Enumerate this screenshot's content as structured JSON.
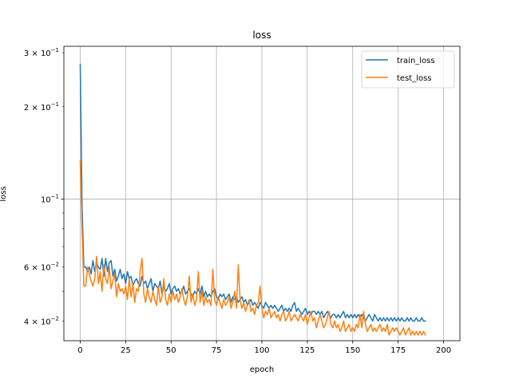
{
  "chart_data": {
    "type": "line",
    "title": "loss",
    "xlabel": "epoch",
    "ylabel": "loss",
    "yscale": "log",
    "xlim": [
      -9,
      209
    ],
    "ylim": [
      0.0345,
      0.315
    ],
    "grid": true,
    "legend_position": "top-right",
    "x_ticks": [
      0,
      25,
      50,
      75,
      100,
      125,
      150,
      175,
      200
    ],
    "x_tick_labels": [
      "0",
      "25",
      "50",
      "75",
      "100",
      "125",
      "150",
      "175",
      "200"
    ],
    "y_major_ticks": [
      {
        "value": 0.1,
        "base": "10",
        "exp": "−1",
        "mantissa": ""
      }
    ],
    "y_minor_labeled": [
      {
        "value": 0.04,
        "mantissa": "4",
        "base": "10",
        "exp": "−2"
      },
      {
        "value": 0.06,
        "mantissa": "6",
        "base": "10",
        "exp": "−2"
      },
      {
        "value": 0.2,
        "mantissa": "2",
        "base": "10",
        "exp": "−1"
      },
      {
        "value": 0.3,
        "mantissa": "3",
        "base": "10",
        "exp": "−1"
      }
    ],
    "y_minor_unlabeled": [
      0.05,
      0.07,
      0.08,
      0.09
    ],
    "times_symbol": "×",
    "series": [
      {
        "name": "train_loss",
        "color": "#1f77b4",
        "x_start": 0,
        "values": [
          0.275,
          0.095,
          0.06,
          0.06,
          0.058,
          0.06,
          0.057,
          0.063,
          0.058,
          0.062,
          0.06,
          0.059,
          0.064,
          0.056,
          0.064,
          0.058,
          0.062,
          0.063,
          0.056,
          0.059,
          0.054,
          0.056,
          0.059,
          0.055,
          0.057,
          0.053,
          0.058,
          0.055,
          0.056,
          0.052,
          0.054,
          0.055,
          0.053,
          0.052,
          0.056,
          0.053,
          0.054,
          0.051,
          0.053,
          0.055,
          0.05,
          0.053,
          0.052,
          0.051,
          0.054,
          0.049,
          0.052,
          0.05,
          0.051,
          0.053,
          0.049,
          0.051,
          0.052,
          0.05,
          0.051,
          0.049,
          0.05,
          0.052,
          0.049,
          0.05,
          0.051,
          0.049,
          0.048,
          0.05,
          0.049,
          0.051,
          0.049,
          0.052,
          0.048,
          0.05,
          0.048,
          0.049,
          0.048,
          0.05,
          0.051,
          0.048,
          0.047,
          0.049,
          0.048,
          0.049,
          0.047,
          0.048,
          0.049,
          0.046,
          0.048,
          0.047,
          0.048,
          0.046,
          0.047,
          0.048,
          0.046,
          0.047,
          0.045,
          0.046,
          0.047,
          0.045,
          0.046,
          0.045,
          0.044,
          0.046,
          0.045,
          0.044,
          0.046,
          0.045,
          0.044,
          0.045,
          0.044,
          0.045,
          0.044,
          0.043,
          0.044,
          0.045,
          0.043,
          0.044,
          0.043,
          0.044,
          0.043,
          0.045,
          0.046,
          0.043,
          0.044,
          0.043,
          0.042,
          0.043,
          0.044,
          0.042,
          0.043,
          0.042,
          0.043,
          0.043,
          0.042,
          0.043,
          0.042,
          0.043,
          0.041,
          0.042,
          0.043,
          0.042,
          0.041,
          0.042,
          0.042,
          0.041,
          0.042,
          0.041,
          0.042,
          0.043,
          0.041,
          0.042,
          0.041,
          0.042,
          0.041,
          0.042,
          0.041,
          0.042,
          0.041,
          0.042,
          0.041,
          0.04,
          0.041,
          0.042,
          0.041,
          0.04,
          0.042,
          0.041,
          0.04,
          0.041,
          0.04,
          0.041,
          0.04,
          0.041,
          0.04,
          0.041,
          0.04,
          0.041,
          0.04,
          0.041,
          0.04,
          0.041,
          0.04,
          0.04,
          0.041,
          0.04,
          0.041,
          0.04,
          0.04,
          0.041,
          0.04,
          0.04,
          0.041,
          0.04,
          0.04
        ]
      },
      {
        "name": "test_loss",
        "color": "#ff7f0e",
        "x_start": 0,
        "values": [
          0.133,
          0.08,
          0.052,
          0.052,
          0.06,
          0.057,
          0.054,
          0.052,
          0.055,
          0.065,
          0.053,
          0.058,
          0.05,
          0.061,
          0.055,
          0.053,
          0.06,
          0.051,
          0.054,
          0.057,
          0.048,
          0.053,
          0.05,
          0.051,
          0.049,
          0.052,
          0.047,
          0.055,
          0.048,
          0.053,
          0.046,
          0.051,
          0.05,
          0.058,
          0.064,
          0.049,
          0.046,
          0.051,
          0.048,
          0.046,
          0.05,
          0.047,
          0.045,
          0.052,
          0.046,
          0.048,
          0.055,
          0.047,
          0.045,
          0.049,
          0.046,
          0.05,
          0.047,
          0.049,
          0.046,
          0.048,
          0.051,
          0.047,
          0.045,
          0.048,
          0.056,
          0.046,
          0.049,
          0.045,
          0.047,
          0.058,
          0.046,
          0.05,
          0.045,
          0.048,
          0.046,
          0.047,
          0.045,
          0.059,
          0.047,
          0.045,
          0.048,
          0.046,
          0.044,
          0.047,
          0.045,
          0.046,
          0.048,
          0.044,
          0.046,
          0.05,
          0.044,
          0.061,
          0.047,
          0.044,
          0.046,
          0.043,
          0.045,
          0.047,
          0.043,
          0.044,
          0.042,
          0.045,
          0.046,
          0.052,
          0.044,
          0.041,
          0.043,
          0.042,
          0.044,
          0.041,
          0.042,
          0.043,
          0.041,
          0.042,
          0.04,
          0.042,
          0.043,
          0.04,
          0.041,
          0.043,
          0.04,
          0.041,
          0.042,
          0.041,
          0.04,
          0.042,
          0.041,
          0.04,
          0.042,
          0.039,
          0.041,
          0.043,
          0.04,
          0.041,
          0.038,
          0.04,
          0.042,
          0.04,
          0.038,
          0.039,
          0.041,
          0.043,
          0.039,
          0.038,
          0.04,
          0.038,
          0.039,
          0.037,
          0.038,
          0.04,
          0.037,
          0.038,
          0.039,
          0.037,
          0.038,
          0.037,
          0.039,
          0.038,
          0.042,
          0.038,
          0.043,
          0.039,
          0.037,
          0.038,
          0.039,
          0.037,
          0.038,
          0.037,
          0.038,
          0.039,
          0.037,
          0.038,
          0.037,
          0.039,
          0.036,
          0.037,
          0.038,
          0.037,
          0.038,
          0.037,
          0.036,
          0.037,
          0.038,
          0.036,
          0.037,
          0.038,
          0.036,
          0.037,
          0.036,
          0.037,
          0.036,
          0.037,
          0.036,
          0.037,
          0.036
        ]
      }
    ]
  }
}
